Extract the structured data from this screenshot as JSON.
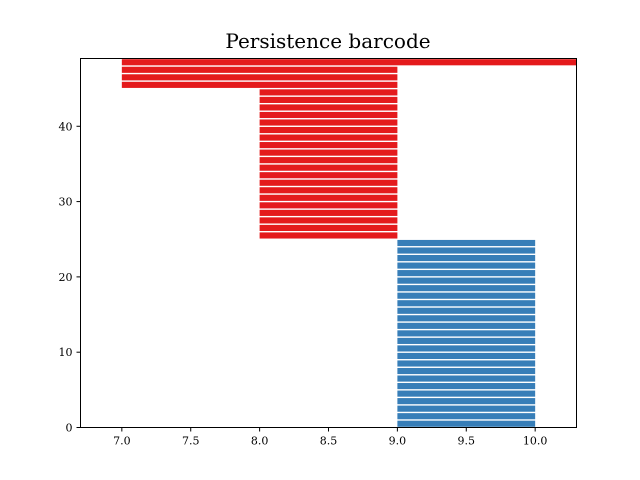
{
  "chart_data": {
    "type": "bar",
    "title": "Persistence barcode",
    "xlabel": "",
    "ylabel": "",
    "xlim": [
      6.7,
      10.3
    ],
    "ylim": [
      0,
      49
    ],
    "xticks": [
      "7.0",
      "7.5",
      "8.0",
      "8.5",
      "9.0",
      "9.5",
      "10.0"
    ],
    "yticks": [
      "0",
      "10",
      "20",
      "30",
      "40"
    ],
    "grid": false,
    "legend": "none",
    "series": [
      {
        "color": "#377eb8",
        "bars": [
          {
            "y": 0,
            "start": 9.0,
            "end": 10.0
          },
          {
            "y": 1,
            "start": 9.0,
            "end": 10.0
          },
          {
            "y": 2,
            "start": 9.0,
            "end": 10.0
          },
          {
            "y": 3,
            "start": 9.0,
            "end": 10.0
          },
          {
            "y": 4,
            "start": 9.0,
            "end": 10.0
          },
          {
            "y": 5,
            "start": 9.0,
            "end": 10.0
          },
          {
            "y": 6,
            "start": 9.0,
            "end": 10.0
          },
          {
            "y": 7,
            "start": 9.0,
            "end": 10.0
          },
          {
            "y": 8,
            "start": 9.0,
            "end": 10.0
          },
          {
            "y": 9,
            "start": 9.0,
            "end": 10.0
          },
          {
            "y": 10,
            "start": 9.0,
            "end": 10.0
          },
          {
            "y": 11,
            "start": 9.0,
            "end": 10.0
          },
          {
            "y": 12,
            "start": 9.0,
            "end": 10.0
          },
          {
            "y": 13,
            "start": 9.0,
            "end": 10.0
          },
          {
            "y": 14,
            "start": 9.0,
            "end": 10.0
          },
          {
            "y": 15,
            "start": 9.0,
            "end": 10.0
          },
          {
            "y": 16,
            "start": 9.0,
            "end": 10.0
          },
          {
            "y": 17,
            "start": 9.0,
            "end": 10.0
          },
          {
            "y": 18,
            "start": 9.0,
            "end": 10.0
          },
          {
            "y": 19,
            "start": 9.0,
            "end": 10.0
          },
          {
            "y": 20,
            "start": 9.0,
            "end": 10.0
          },
          {
            "y": 21,
            "start": 9.0,
            "end": 10.0
          },
          {
            "y": 22,
            "start": 9.0,
            "end": 10.0
          },
          {
            "y": 23,
            "start": 9.0,
            "end": 10.0
          },
          {
            "y": 24,
            "start": 9.0,
            "end": 10.0
          }
        ]
      },
      {
        "color": "#e41a1c",
        "bars": [
          {
            "y": 25,
            "start": 8.0,
            "end": 9.0
          },
          {
            "y": 26,
            "start": 8.0,
            "end": 9.0
          },
          {
            "y": 27,
            "start": 8.0,
            "end": 9.0
          },
          {
            "y": 28,
            "start": 8.0,
            "end": 9.0
          },
          {
            "y": 29,
            "start": 8.0,
            "end": 9.0
          },
          {
            "y": 30,
            "start": 8.0,
            "end": 9.0
          },
          {
            "y": 31,
            "start": 8.0,
            "end": 9.0
          },
          {
            "y": 32,
            "start": 8.0,
            "end": 9.0
          },
          {
            "y": 33,
            "start": 8.0,
            "end": 9.0
          },
          {
            "y": 34,
            "start": 8.0,
            "end": 9.0
          },
          {
            "y": 35,
            "start": 8.0,
            "end": 9.0
          },
          {
            "y": 36,
            "start": 8.0,
            "end": 9.0
          },
          {
            "y": 37,
            "start": 8.0,
            "end": 9.0
          },
          {
            "y": 38,
            "start": 8.0,
            "end": 9.0
          },
          {
            "y": 39,
            "start": 8.0,
            "end": 9.0
          },
          {
            "y": 40,
            "start": 8.0,
            "end": 9.0
          },
          {
            "y": 41,
            "start": 8.0,
            "end": 9.0
          },
          {
            "y": 42,
            "start": 8.0,
            "end": 9.0
          },
          {
            "y": 43,
            "start": 8.0,
            "end": 9.0
          },
          {
            "y": 44,
            "start": 8.0,
            "end": 9.0
          },
          {
            "y": 45,
            "start": 7.0,
            "end": 9.0
          },
          {
            "y": 46,
            "start": 7.0,
            "end": 9.0
          },
          {
            "y": 47,
            "start": 7.0,
            "end": 9.0
          },
          {
            "y": 48,
            "start": 7.0,
            "end": 10.3
          }
        ]
      }
    ]
  }
}
